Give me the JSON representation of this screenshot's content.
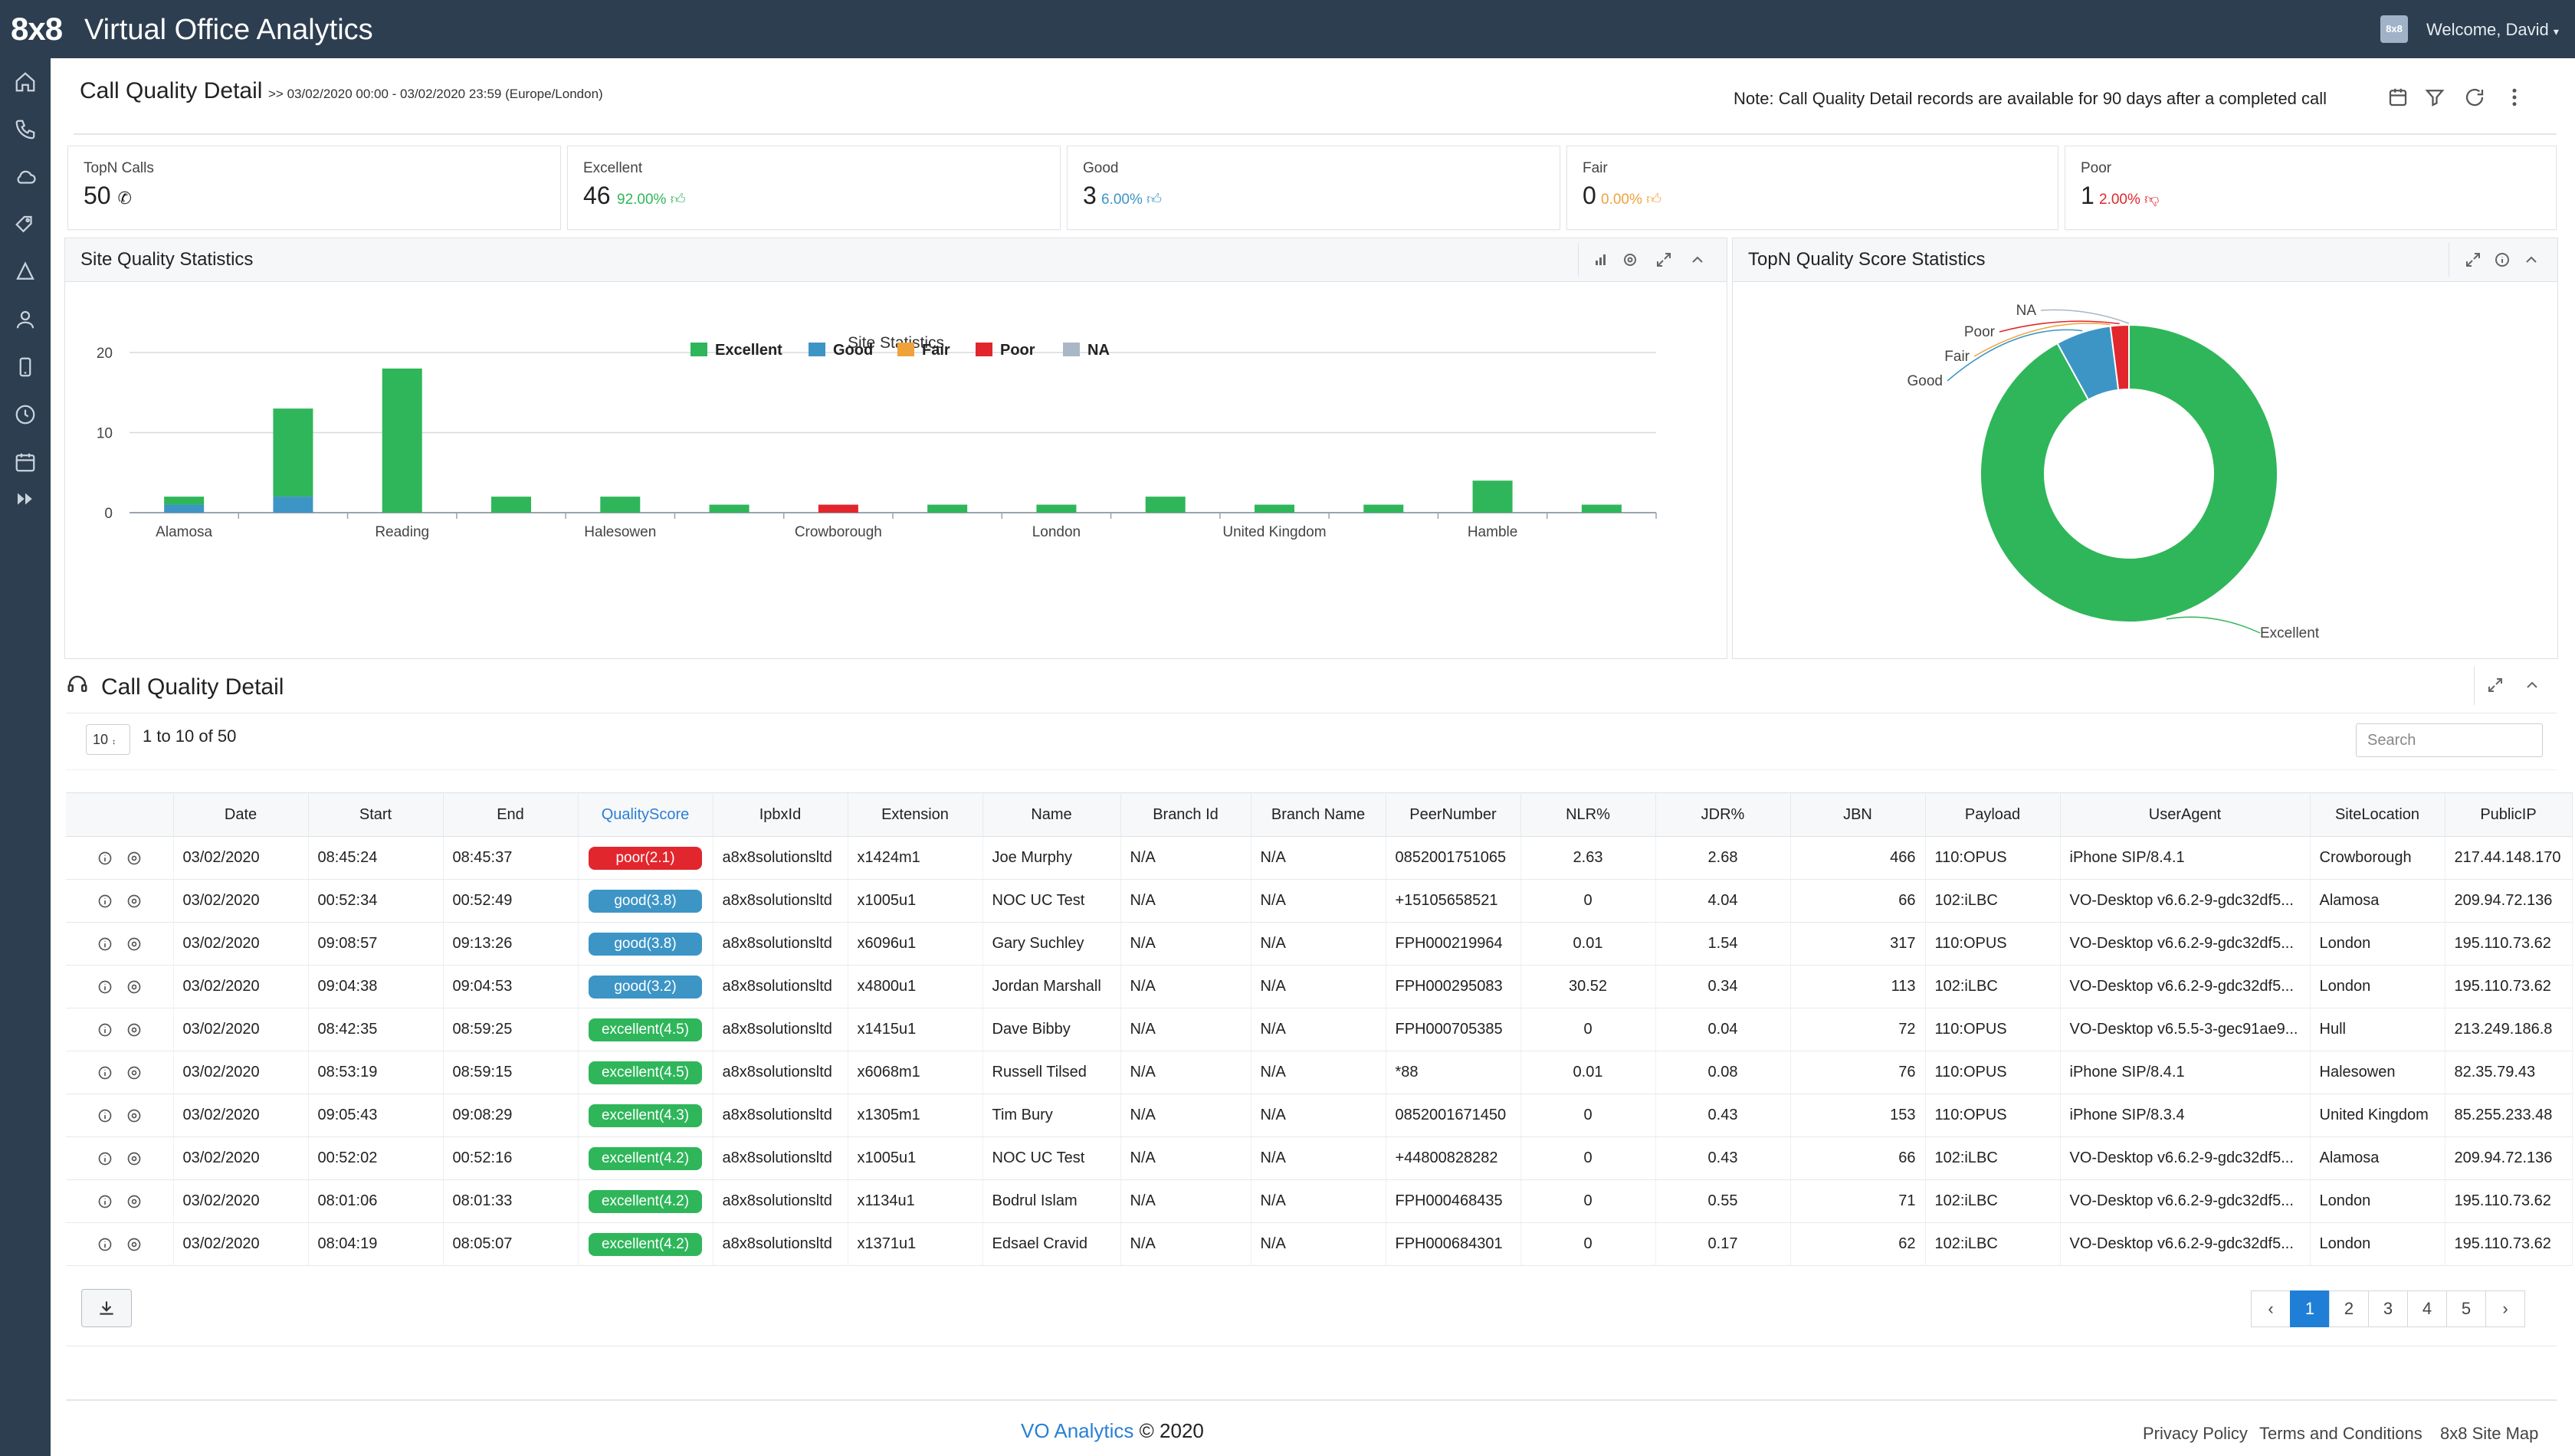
{
  "app": {
    "logo": "8x8",
    "title": "Virtual Office Analytics",
    "avatar": "8x8",
    "welcome": "Welcome, David"
  },
  "sidebar": {
    "icons": [
      "home-icon",
      "phone-icon",
      "cloud-icon",
      "tags-icon",
      "sitemap-icon",
      "user-icon",
      "mobile-icon",
      "clock-icon",
      "calendar-icon",
      "forward-icon"
    ]
  },
  "header": {
    "title": "Call Quality Detail",
    "date_range": ">> 03/02/2020 00:00 - 03/02/2020 23:59  (Europe/London)",
    "note": "Note: Call Quality Detail records are available for 90 days after a completed call"
  },
  "stats": [
    {
      "label": "TopN Calls",
      "value": "50",
      "pct": "",
      "color": "#222222"
    },
    {
      "label": "Excellent",
      "value": "46",
      "pct": "92.00%",
      "color": "#2fb65a"
    },
    {
      "label": "Good",
      "value": "3",
      "pct": "6.00%",
      "color": "#3d95c6"
    },
    {
      "label": "Fair",
      "value": "0",
      "pct": "0.00%",
      "color": "#f0a23a"
    },
    {
      "label": "Poor",
      "value": "1",
      "pct": "2.00%",
      "color": "#e2262d"
    }
  ],
  "site_panel": {
    "title": "Site Quality Statistics"
  },
  "topn_panel": {
    "title": "TopN Quality Score Statistics"
  },
  "chart_data": [
    {
      "type": "bar",
      "stacked": true,
      "title": "Site Statistics",
      "ylim": [
        0,
        20
      ],
      "yticks": [
        0,
        10,
        20
      ],
      "x_tick_labels": [
        "Alamosa",
        "Reading",
        "Halesowen",
        "Crowborough",
        "London",
        "United Kingdom",
        "Hamble"
      ],
      "categories": [
        "Alamosa",
        "",
        "Reading",
        "",
        "Halesowen",
        "",
        "Crowborough",
        "",
        "London",
        "",
        "United Kingdom",
        "",
        "Hamble",
        ""
      ],
      "series": [
        {
          "name": "Excellent",
          "color": "#2fb65a",
          "values": [
            1,
            11,
            18,
            2,
            2,
            1,
            0,
            1,
            1,
            2,
            1,
            1,
            4,
            1
          ]
        },
        {
          "name": "Good",
          "color": "#3d95c6",
          "values": [
            1,
            2,
            0,
            0,
            0,
            0,
            0,
            0,
            0,
            0,
            0,
            0,
            0,
            0
          ]
        },
        {
          "name": "Fair",
          "color": "#f0a23a",
          "values": [
            0,
            0,
            0,
            0,
            0,
            0,
            0,
            0,
            0,
            0,
            0,
            0,
            0,
            0
          ]
        },
        {
          "name": "Poor",
          "color": "#e2262d",
          "values": [
            0,
            0,
            0,
            0,
            0,
            0,
            1,
            0,
            0,
            0,
            0,
            0,
            0,
            0
          ]
        },
        {
          "name": "NA",
          "color": "#a9b7c6",
          "values": [
            0,
            0,
            0,
            0,
            0,
            0,
            0,
            0,
            0,
            0,
            0,
            0,
            0,
            0
          ]
        }
      ],
      "legend": "bottom",
      "grid": true
    },
    {
      "type": "pie",
      "donut": true,
      "labels": [
        "Excellent",
        "Good",
        "Fair",
        "Poor",
        "NA"
      ],
      "values": [
        46,
        3,
        0,
        1,
        0
      ],
      "colors": [
        "#2fb65a",
        "#3d95c6",
        "#f0a23a",
        "#e2262d",
        "#a9b7c6"
      ]
    }
  ],
  "table_section": {
    "title": "Call Quality Detail",
    "page_size": "10",
    "range": "1 to 10 of 50",
    "search_placeholder": "Search",
    "columns": [
      "",
      "Date",
      "Start",
      "End",
      "QualityScore",
      "IpbxId",
      "Extension",
      "Name",
      "Branch Id",
      "Branch Name",
      "PeerNumber",
      "NLR%",
      "JDR%",
      "JBN",
      "Payload",
      "UserAgent",
      "SiteLocation",
      "PublicIP"
    ],
    "rows": [
      [
        "03/02/2020",
        "08:45:24",
        "08:45:37",
        "poor(2.1)",
        "a8x8solutionsltd",
        "x1424m1",
        "Joe Murphy",
        "N/A",
        "N/A",
        "0852001751065",
        "2.63",
        "2.68",
        "466",
        "110:OPUS",
        "iPhone SIP/8.4.1",
        "Crowborough",
        "217.44.148.170"
      ],
      [
        "03/02/2020",
        "00:52:34",
        "00:52:49",
        "good(3.8)",
        "a8x8solutionsltd",
        "x1005u1",
        "NOC UC Test",
        "N/A",
        "N/A",
        "+15105658521",
        "0",
        "4.04",
        "66",
        "102:iLBC",
        "VO-Desktop v6.6.2-9-gdc32df5...",
        "Alamosa",
        "209.94.72.136"
      ],
      [
        "03/02/2020",
        "09:08:57",
        "09:13:26",
        "good(3.8)",
        "a8x8solutionsltd",
        "x6096u1",
        "Gary Suchley",
        "N/A",
        "N/A",
        "FPH000219964",
        "0.01",
        "1.54",
        "317",
        "110:OPUS",
        "VO-Desktop v6.6.2-9-gdc32df5...",
        "London",
        "195.110.73.62"
      ],
      [
        "03/02/2020",
        "09:04:38",
        "09:04:53",
        "good(3.2)",
        "a8x8solutionsltd",
        "x4800u1",
        "Jordan Marshall",
        "N/A",
        "N/A",
        "FPH000295083",
        "30.52",
        "0.34",
        "113",
        "102:iLBC",
        "VO-Desktop v6.6.2-9-gdc32df5...",
        "London",
        "195.110.73.62"
      ],
      [
        "03/02/2020",
        "08:42:35",
        "08:59:25",
        "excellent(4.5)",
        "a8x8solutionsltd",
        "x1415u1",
        "Dave Bibby",
        "N/A",
        "N/A",
        "FPH000705385",
        "0",
        "0.04",
        "72",
        "110:OPUS",
        "VO-Desktop v6.5.5-3-gec91ae9...",
        "Hull",
        "213.249.186.8"
      ],
      [
        "03/02/2020",
        "08:53:19",
        "08:59:15",
        "excellent(4.5)",
        "a8x8solutionsltd",
        "x6068m1",
        "Russell Tilsed",
        "N/A",
        "N/A",
        "*88",
        "0.01",
        "0.08",
        "76",
        "110:OPUS",
        "iPhone SIP/8.4.1",
        "Halesowen",
        "82.35.79.43"
      ],
      [
        "03/02/2020",
        "09:05:43",
        "09:08:29",
        "excellent(4.3)",
        "a8x8solutionsltd",
        "x1305m1",
        "Tim Bury",
        "N/A",
        "N/A",
        "0852001671450",
        "0",
        "0.43",
        "153",
        "110:OPUS",
        "iPhone SIP/8.3.4",
        "United Kingdom",
        "85.255.233.48"
      ],
      [
        "03/02/2020",
        "00:52:02",
        "00:52:16",
        "excellent(4.2)",
        "a8x8solutionsltd",
        "x1005u1",
        "NOC UC Test",
        "N/A",
        "N/A",
        "+44800828282",
        "0",
        "0.43",
        "66",
        "102:iLBC",
        "VO-Desktop v6.6.2-9-gdc32df5...",
        "Alamosa",
        "209.94.72.136"
      ],
      [
        "03/02/2020",
        "08:01:06",
        "08:01:33",
        "excellent(4.2)",
        "a8x8solutionsltd",
        "x1134u1",
        "Bodrul Islam",
        "N/A",
        "N/A",
        "FPH000468435",
        "0",
        "0.55",
        "71",
        "102:iLBC",
        "VO-Desktop v6.6.2-9-gdc32df5...",
        "London",
        "195.110.73.62"
      ],
      [
        "03/02/2020",
        "08:04:19",
        "08:05:07",
        "excellent(4.2)",
        "a8x8solutionsltd",
        "x1371u1",
        "Edsael Cravid",
        "N/A",
        "N/A",
        "FPH000684301",
        "0",
        "0.17",
        "62",
        "102:iLBC",
        "VO-Desktop v6.6.2-9-gdc32df5...",
        "London",
        "195.110.73.62"
      ]
    ]
  },
  "pagination": {
    "prev": "‹",
    "pages": [
      "1",
      "2",
      "3",
      "4",
      "5"
    ],
    "next": "›",
    "active": "1"
  },
  "footer": {
    "brand_link": "VO Analytics",
    "copyright": "© 2020",
    "links": [
      "Privacy Policy",
      "Terms and Conditions",
      "8x8 Site Map"
    ]
  }
}
